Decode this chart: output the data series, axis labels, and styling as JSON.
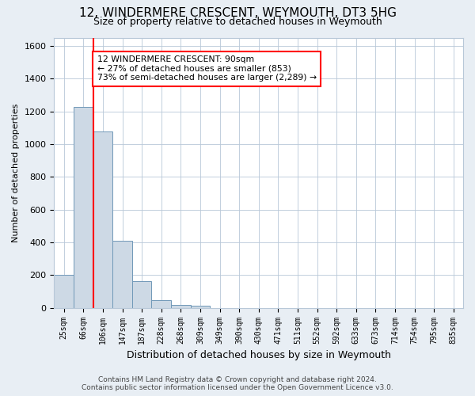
{
  "title": "12, WINDERMERE CRESCENT, WEYMOUTH, DT3 5HG",
  "subtitle": "Size of property relative to detached houses in Weymouth",
  "xlabel": "Distribution of detached houses by size in Weymouth",
  "ylabel": "Number of detached properties",
  "categories": [
    "25sqm",
    "66sqm",
    "106sqm",
    "147sqm",
    "187sqm",
    "228sqm",
    "268sqm",
    "309sqm",
    "349sqm",
    "390sqm",
    "430sqm",
    "471sqm",
    "511sqm",
    "552sqm",
    "592sqm",
    "633sqm",
    "673sqm",
    "714sqm",
    "754sqm",
    "795sqm",
    "835sqm"
  ],
  "values": [
    200,
    1225,
    1075,
    410,
    165,
    45,
    20,
    12,
    0,
    0,
    0,
    0,
    0,
    0,
    0,
    0,
    0,
    0,
    0,
    0,
    0
  ],
  "bar_color": "#cdd9e5",
  "bar_edge_color": "#7098b8",
  "property_line_x": 1.5,
  "annotation_text": "12 WINDERMERE CRESCENT: 90sqm\n← 27% of detached houses are smaller (853)\n73% of semi-detached houses are larger (2,289) →",
  "annotation_box_color": "white",
  "annotation_box_edge_color": "red",
  "vline_color": "red",
  "ylim": [
    0,
    1650
  ],
  "yticks": [
    0,
    200,
    400,
    600,
    800,
    1000,
    1200,
    1400,
    1600
  ],
  "footer_line1": "Contains HM Land Registry data © Crown copyright and database right 2024.",
  "footer_line2": "Contains public sector information licensed under the Open Government Licence v3.0.",
  "bg_color": "#e8eef4",
  "plot_bg_color": "#ffffff",
  "grid_color": "#b8c8d8",
  "title_fontsize": 11,
  "subtitle_fontsize": 9
}
